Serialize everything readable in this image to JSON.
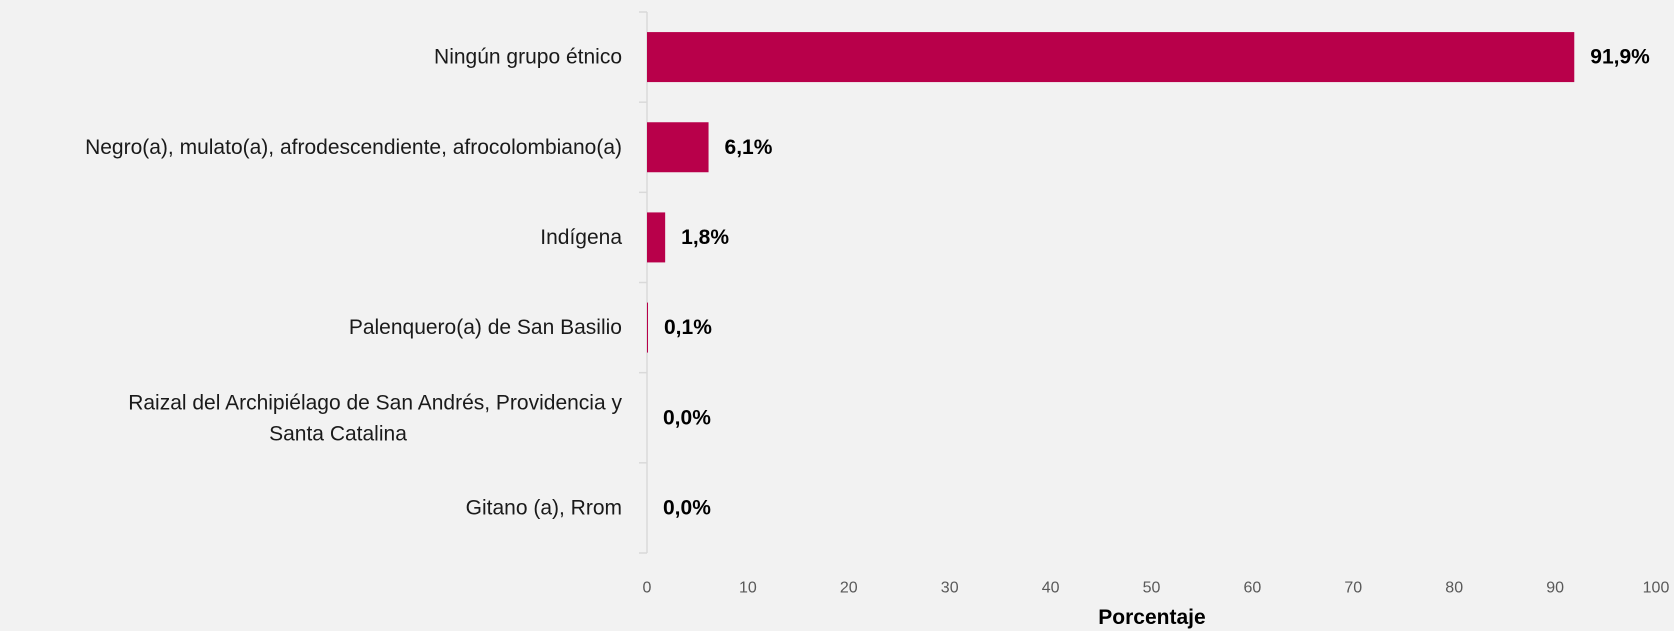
{
  "chart_data": {
    "type": "bar",
    "orientation": "horizontal",
    "categories": [
      "Ningún grupo étnico",
      "Negro(a), mulato(a), afrodescendiente, afrocolombiano(a)",
      "Indígena",
      "Palenquero(a) de San Basilio",
      "Raizal del Archipiélago de San Andrés, Providencia y Santa Catalina",
      "Gitano (a), Rrom"
    ],
    "category_lines": [
      [
        "Ningún grupo étnico"
      ],
      [
        "Negro(a), mulato(a), afrodescendiente, afrocolombiano(a)"
      ],
      [
        "Indígena"
      ],
      [
        "Palenquero(a) de San Basilio"
      ],
      [
        "Raizal del Archipiélago de San Andrés, Providencia y",
        "Santa Catalina"
      ],
      [
        "Gitano (a), Rrom"
      ]
    ],
    "values": [
      91.9,
      6.1,
      1.8,
      0.1,
      0.0,
      0.0
    ],
    "data_labels": [
      "91,9%",
      "6,1%",
      "1,8%",
      "0,1%",
      "0,0%",
      "0,0%"
    ],
    "xlabel": "Porcentaje",
    "ylabel": "",
    "xlim": [
      0,
      100
    ],
    "x_ticks": [
      0,
      10,
      20,
      30,
      40,
      50,
      60,
      70,
      80,
      90,
      100
    ],
    "grid": false,
    "legend": "none",
    "colors": {
      "bar": "#b8004a",
      "background": "#f2f2f2",
      "axis": "#d9d9d9",
      "tick_text": "#595959",
      "label_text": "#1a1a1a"
    }
  }
}
